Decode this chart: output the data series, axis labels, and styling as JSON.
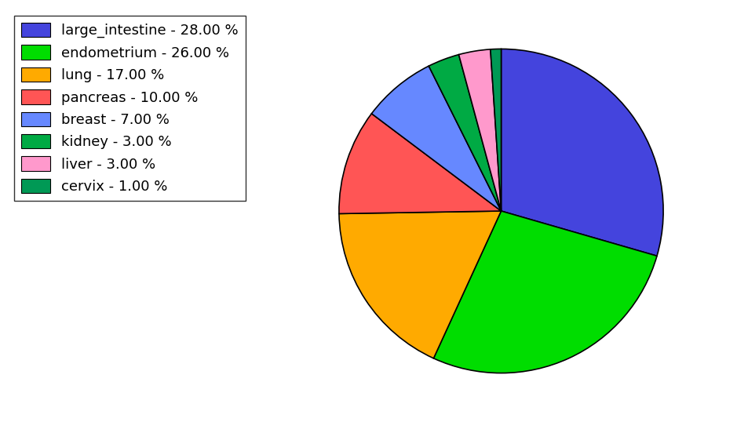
{
  "labels": [
    "large_intestine",
    "endometrium",
    "lung",
    "pancreas",
    "breast",
    "kidney",
    "liver",
    "cervix"
  ],
  "values": [
    28.0,
    26.0,
    17.0,
    10.0,
    7.0,
    3.0,
    3.0,
    1.0
  ],
  "colors": [
    "#4444dd",
    "#00dd00",
    "#ffaa00",
    "#ff5555",
    "#6688ff",
    "#00aa44",
    "#ff99cc",
    "#009955"
  ],
  "legend_labels": [
    "large_intestine - 28.00 %",
    "endometrium - 26.00 %",
    "lung - 17.00 %",
    "pancreas - 10.00 %",
    "breast - 7.00 %",
    "kidney - 3.00 %",
    "liver - 3.00 %",
    "cervix - 1.00 %"
  ],
  "figsize": [
    9.39,
    5.38
  ],
  "dpi": 100,
  "startangle": 90,
  "legend_fontsize": 13
}
